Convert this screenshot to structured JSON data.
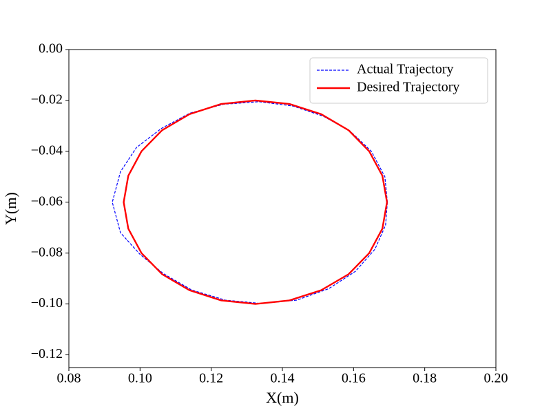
{
  "chart_data": {
    "type": "line",
    "xlabel": "X(m)",
    "ylabel": "Y(m)",
    "xlim": [
      0.08,
      0.2
    ],
    "xticks": [
      0.08,
      {
        "value": 0.1,
        "label": "0.10"
      },
      0.12,
      0.14,
      0.16,
      0.18,
      {
        "value": 0.2,
        "label": "0.20"
      }
    ],
    "ylim": [
      -0.125,
      0
    ],
    "yticks": [
      {
        "value": 0,
        "label": "0.00"
      },
      {
        "value": -0.02,
        "label": "−0.02"
      },
      {
        "value": -0.04,
        "label": "−0.04"
      },
      {
        "value": -0.06,
        "label": "−0.06"
      },
      {
        "value": -0.08,
        "label": "−0.08"
      },
      {
        "value": -0.1,
        "label": "−0.10"
      },
      {
        "value": -0.12,
        "label": "−0.12"
      }
    ],
    "legend": "upper right",
    "series": [
      {
        "name": "Actual Trajectory",
        "color": "#0000ff",
        "linestyle": "dashed",
        "x": [
          0.1695,
          0.1688,
          0.165,
          0.159,
          0.1515,
          0.143,
          0.1335,
          0.1235,
          0.114,
          0.106,
          0.099,
          0.0945,
          0.0922,
          0.0945,
          0.1,
          0.1065,
          0.1145,
          0.124,
          0.134,
          0.144,
          0.153,
          0.1605,
          0.166,
          0.169,
          0.1695
        ],
        "values": [
          -0.06,
          -0.05,
          -0.04,
          -0.032,
          -0.0262,
          -0.0222,
          -0.0205,
          -0.0215,
          -0.025,
          -0.031,
          -0.0385,
          -0.048,
          -0.06,
          -0.072,
          -0.0805,
          -0.088,
          -0.0945,
          -0.0985,
          -0.0998,
          -0.0985,
          -0.094,
          -0.0872,
          -0.0785,
          -0.069,
          -0.06
        ]
      },
      {
        "name": "Desired Trajectory",
        "color": "#ff0000",
        "linestyle": "solid",
        "x": [
          0.1694,
          0.1681,
          0.1644,
          0.1586,
          0.1509,
          0.142,
          0.1324,
          0.1228,
          0.1139,
          0.1062,
          0.1004,
          0.0967,
          0.0954,
          0.0967,
          0.1004,
          0.1062,
          0.1139,
          0.1228,
          0.1324,
          0.142,
          0.1509,
          0.1586,
          0.1644,
          0.1681,
          0.1694
        ],
        "values": [
          -0.06,
          -0.0496,
          -0.04,
          -0.0317,
          -0.0254,
          -0.0214,
          -0.02,
          -0.0214,
          -0.0254,
          -0.0317,
          -0.04,
          -0.0496,
          -0.06,
          -0.0704,
          -0.08,
          -0.0883,
          -0.0946,
          -0.0986,
          -0.1,
          -0.0986,
          -0.0946,
          -0.0883,
          -0.08,
          -0.0704,
          -0.06
        ]
      }
    ]
  }
}
